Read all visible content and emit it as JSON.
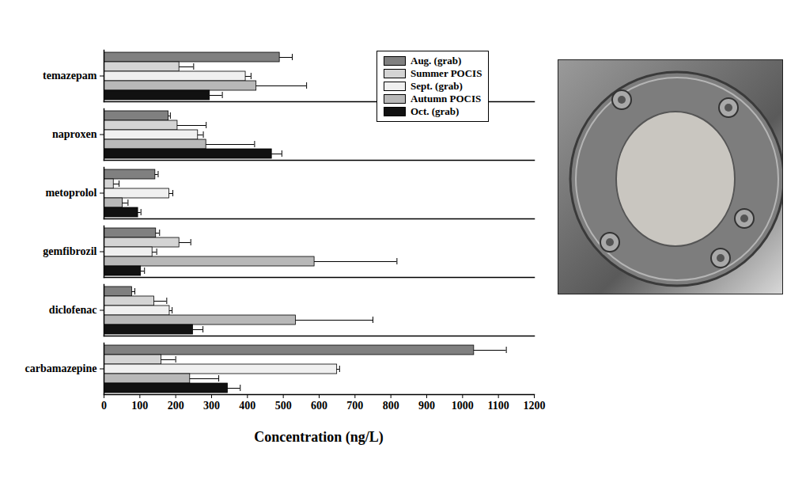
{
  "chart_data": {
    "type": "bar",
    "orientation": "horizontal",
    "x_label": "Concentration (ng/L)",
    "categories": [
      "temazepam",
      "naproxen",
      "metoprolol",
      "gemfibrozil",
      "diclofenac",
      "carbamazepine"
    ],
    "series": [
      {
        "name": "Aug. (grab)",
        "color": "#808080",
        "values": [
          490,
          180,
          143,
          145,
          78,
          1032
        ],
        "errors": [
          35,
          5,
          8,
          10,
          8,
          90
        ]
      },
      {
        "name": "Summer POCIS",
        "color": "#d4d4d4",
        "values": [
          210,
          205,
          27,
          210,
          140,
          160
        ],
        "errors": [
          40,
          80,
          15,
          32,
          35,
          40
        ]
      },
      {
        "name": "Sept. (grab)",
        "color": "#f0f0f0",
        "values": [
          395,
          262,
          182,
          135,
          183,
          650
        ],
        "errors": [
          15,
          15,
          10,
          12,
          7,
          7
        ]
      },
      {
        "name": "Autumn POCIS",
        "color": "#b8b8b8",
        "values": [
          425,
          285,
          52,
          587,
          535,
          240
        ],
        "errors": [
          140,
          135,
          15,
          230,
          215,
          80
        ]
      },
      {
        "name": "Oct. (grab)",
        "color": "#111111",
        "values": [
          295,
          468,
          95,
          103,
          248,
          345
        ],
        "errors": [
          35,
          28,
          8,
          10,
          28,
          35
        ]
      }
    ],
    "xlim": [
      0,
      1200
    ],
    "xticks": [
      0,
      100,
      200,
      300,
      400,
      500,
      600,
      700,
      800,
      900,
      1000,
      1100,
      1200
    ],
    "grid": false,
    "legend": "top-right"
  }
}
